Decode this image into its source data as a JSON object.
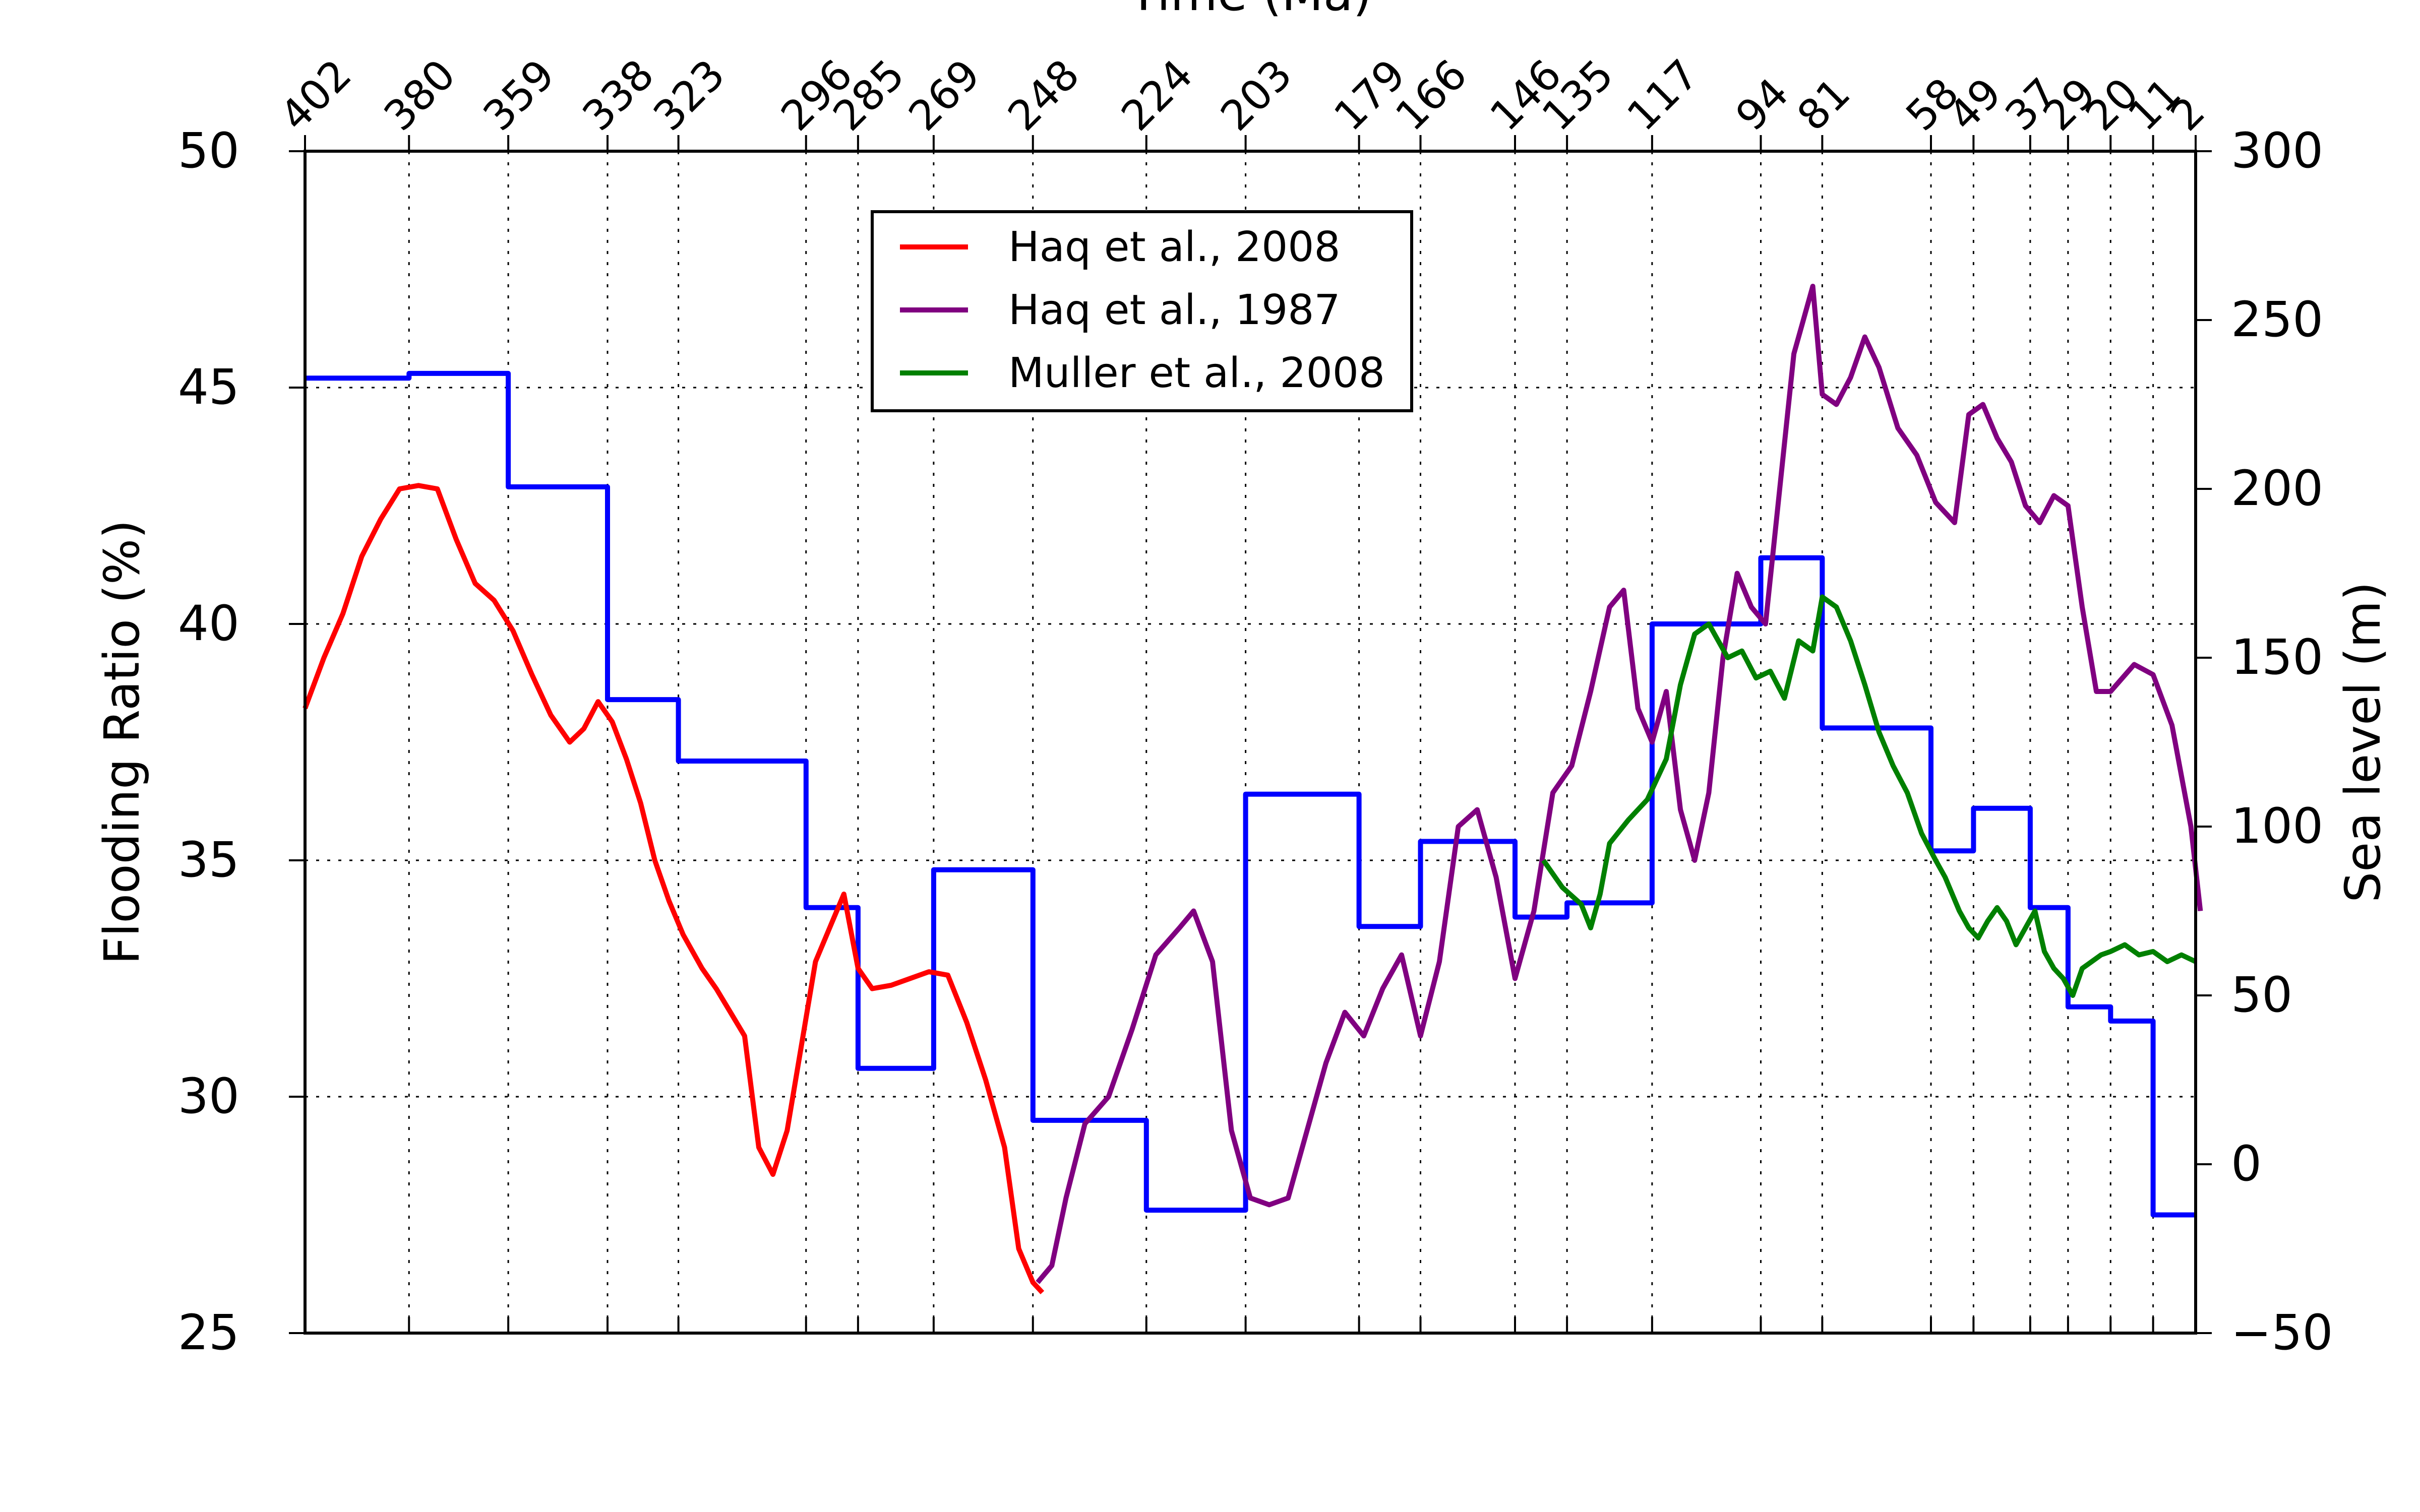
{
  "chart_data": {
    "type": "line",
    "title": "",
    "x_label": "Time (Ma)",
    "x_ticks": [
      402,
      380,
      359,
      338,
      323,
      296,
      285,
      269,
      248,
      224,
      203,
      179,
      166,
      146,
      135,
      117,
      94,
      81,
      58,
      49,
      37,
      29,
      20,
      11,
      2
    ],
    "x_range": [
      402,
      2
    ],
    "x_reversed": true,
    "grid": true,
    "y_left": {
      "label": "Flooding Ratio (%)",
      "ticks": [
        25,
        30,
        35,
        40,
        45,
        50
      ],
      "range": [
        25,
        50
      ]
    },
    "y_right": {
      "label": "Sea level (m)",
      "ticks": [
        -50,
        0,
        50,
        100,
        150,
        200,
        250,
        300
      ],
      "range": [
        -50,
        300
      ]
    },
    "legend": {
      "position": "top-center",
      "entries": [
        "Haq et al., 2008",
        "Haq et al., 1987",
        "Muller et al., 2008"
      ]
    },
    "series": [
      {
        "name": "Flooding Ratio (%)",
        "axis": "left",
        "color": "#0000ff",
        "step": true,
        "points": [
          [
            402,
            45.2
          ],
          [
            380,
            45.2
          ],
          [
            380,
            45.3
          ],
          [
            359,
            45.3
          ],
          [
            359,
            42.9
          ],
          [
            338,
            42.9
          ],
          [
            338,
            38.4
          ],
          [
            323,
            38.4
          ],
          [
            323,
            37.1
          ],
          [
            296,
            37.1
          ],
          [
            296,
            34.0
          ],
          [
            285,
            34.0
          ],
          [
            285,
            30.6
          ],
          [
            269,
            30.6
          ],
          [
            269,
            34.8
          ],
          [
            248,
            34.8
          ],
          [
            248,
            29.5
          ],
          [
            224,
            29.5
          ],
          [
            224,
            27.6
          ],
          [
            203,
            27.6
          ],
          [
            203,
            36.4
          ],
          [
            179,
            36.4
          ],
          [
            179,
            33.6
          ],
          [
            166,
            33.6
          ],
          [
            166,
            35.4
          ],
          [
            146,
            35.4
          ],
          [
            146,
            33.8
          ],
          [
            135,
            33.8
          ],
          [
            135,
            34.1
          ],
          [
            117,
            34.1
          ],
          [
            117,
            40.0
          ],
          [
            94,
            40.0
          ],
          [
            94,
            41.4
          ],
          [
            81,
            41.4
          ],
          [
            81,
            37.8
          ],
          [
            58,
            37.8
          ],
          [
            58,
            35.2
          ],
          [
            49,
            35.2
          ],
          [
            49,
            36.1
          ],
          [
            37,
            36.1
          ],
          [
            37,
            34.0
          ],
          [
            29,
            34.0
          ],
          [
            29,
            31.9
          ],
          [
            20,
            31.9
          ],
          [
            20,
            31.6
          ],
          [
            11,
            31.6
          ],
          [
            11,
            27.5
          ],
          [
            2,
            27.5
          ]
        ]
      },
      {
        "name": "Haq et al., 2008",
        "axis": "right",
        "color": "#ff0000",
        "points": [
          [
            402,
            135
          ],
          [
            398,
            150
          ],
          [
            394,
            163
          ],
          [
            390,
            180
          ],
          [
            386,
            191
          ],
          [
            382,
            200
          ],
          [
            378,
            201
          ],
          [
            374,
            200
          ],
          [
            370,
            185
          ],
          [
            366,
            172
          ],
          [
            362,
            167
          ],
          [
            358,
            158
          ],
          [
            354,
            145
          ],
          [
            350,
            133
          ],
          [
            346,
            125
          ],
          [
            343,
            129
          ],
          [
            340,
            137
          ],
          [
            337,
            131
          ],
          [
            334,
            120
          ],
          [
            331,
            107
          ],
          [
            328,
            90
          ],
          [
            325,
            78
          ],
          [
            322,
            68
          ],
          [
            318,
            58
          ],
          [
            315,
            52
          ],
          [
            312,
            45
          ],
          [
            309,
            38
          ],
          [
            306,
            5
          ],
          [
            303,
            -3
          ],
          [
            300,
            10
          ],
          [
            297,
            35
          ],
          [
            294,
            60
          ],
          [
            291,
            70
          ],
          [
            288,
            80
          ],
          [
            285,
            58
          ],
          [
            282,
            52
          ],
          [
            278,
            53
          ],
          [
            274,
            55
          ],
          [
            270,
            57
          ],
          [
            266,
            56
          ],
          [
            262,
            42
          ],
          [
            258,
            25
          ],
          [
            254,
            5
          ],
          [
            251,
            -25
          ],
          [
            248,
            -35
          ],
          [
            246,
            -38
          ]
        ]
      },
      {
        "name": "Haq et al., 1987",
        "axis": "right",
        "color": "#800080",
        "points": [
          [
            247,
            -35
          ],
          [
            244,
            -30
          ],
          [
            241,
            -10
          ],
          [
            237,
            12
          ],
          [
            232,
            20
          ],
          [
            227,
            40
          ],
          [
            222,
            62
          ],
          [
            217,
            70
          ],
          [
            214,
            75
          ],
          [
            210,
            60
          ],
          [
            206,
            10
          ],
          [
            202,
            -10
          ],
          [
            198,
            -12
          ],
          [
            194,
            -10
          ],
          [
            190,
            10
          ],
          [
            186,
            30
          ],
          [
            182,
            45
          ],
          [
            178,
            38
          ],
          [
            174,
            52
          ],
          [
            170,
            62
          ],
          [
            166,
            38
          ],
          [
            162,
            60
          ],
          [
            158,
            100
          ],
          [
            154,
            105
          ],
          [
            150,
            85
          ],
          [
            146,
            55
          ],
          [
            142,
            75
          ],
          [
            138,
            110
          ],
          [
            134,
            118
          ],
          [
            130,
            140
          ],
          [
            126,
            165
          ],
          [
            123,
            170
          ],
          [
            120,
            135
          ],
          [
            117,
            125
          ],
          [
            114,
            140
          ],
          [
            111,
            105
          ],
          [
            108,
            90
          ],
          [
            105,
            110
          ],
          [
            102,
            150
          ],
          [
            99,
            175
          ],
          [
            96,
            165
          ],
          [
            93,
            160
          ],
          [
            90,
            200
          ],
          [
            87,
            240
          ],
          [
            85,
            250
          ],
          [
            83,
            260
          ],
          [
            81,
            228
          ],
          [
            78,
            225
          ],
          [
            75,
            233
          ],
          [
            72,
            245
          ],
          [
            69,
            236
          ],
          [
            65,
            218
          ],
          [
            61,
            210
          ],
          [
            57,
            196
          ],
          [
            53,
            190
          ],
          [
            50,
            222
          ],
          [
            47,
            225
          ],
          [
            44,
            215
          ],
          [
            41,
            208
          ],
          [
            38,
            195
          ],
          [
            35,
            190
          ],
          [
            32,
            198
          ],
          [
            29,
            195
          ],
          [
            26,
            165
          ],
          [
            23,
            140
          ],
          [
            20,
            140
          ],
          [
            15,
            148
          ],
          [
            11,
            145
          ],
          [
            7,
            130
          ],
          [
            3,
            100
          ],
          [
            1,
            75
          ]
        ]
      },
      {
        "name": "Muller et al., 2008",
        "axis": "right",
        "color": "#008000",
        "points": [
          [
            140,
            90
          ],
          [
            136,
            82
          ],
          [
            132,
            77
          ],
          [
            130,
            70
          ],
          [
            128,
            80
          ],
          [
            126,
            95
          ],
          [
            122,
            102
          ],
          [
            118,
            108
          ],
          [
            114,
            120
          ],
          [
            111,
            142
          ],
          [
            108,
            157
          ],
          [
            105,
            160
          ],
          [
            101,
            150
          ],
          [
            98,
            152
          ],
          [
            95,
            144
          ],
          [
            92,
            146
          ],
          [
            89,
            138
          ],
          [
            86,
            155
          ],
          [
            83,
            152
          ],
          [
            81,
            168
          ],
          [
            78,
            165
          ],
          [
            75,
            155
          ],
          [
            72,
            142
          ],
          [
            69,
            128
          ],
          [
            66,
            118
          ],
          [
            63,
            110
          ],
          [
            60,
            98
          ],
          [
            57,
            90
          ],
          [
            55,
            85
          ],
          [
            52,
            75
          ],
          [
            50,
            70
          ],
          [
            48,
            67
          ],
          [
            46,
            72
          ],
          [
            44,
            76
          ],
          [
            42,
            72
          ],
          [
            40,
            65
          ],
          [
            38,
            70
          ],
          [
            36,
            75
          ],
          [
            34,
            63
          ],
          [
            32,
            58
          ],
          [
            30,
            55
          ],
          [
            28,
            50
          ],
          [
            26,
            58
          ],
          [
            24,
            60
          ],
          [
            22,
            62
          ],
          [
            20,
            63
          ],
          [
            17,
            65
          ],
          [
            14,
            62
          ],
          [
            11,
            63
          ],
          [
            8,
            60
          ],
          [
            5,
            62
          ],
          [
            2,
            60
          ]
        ]
      }
    ]
  }
}
